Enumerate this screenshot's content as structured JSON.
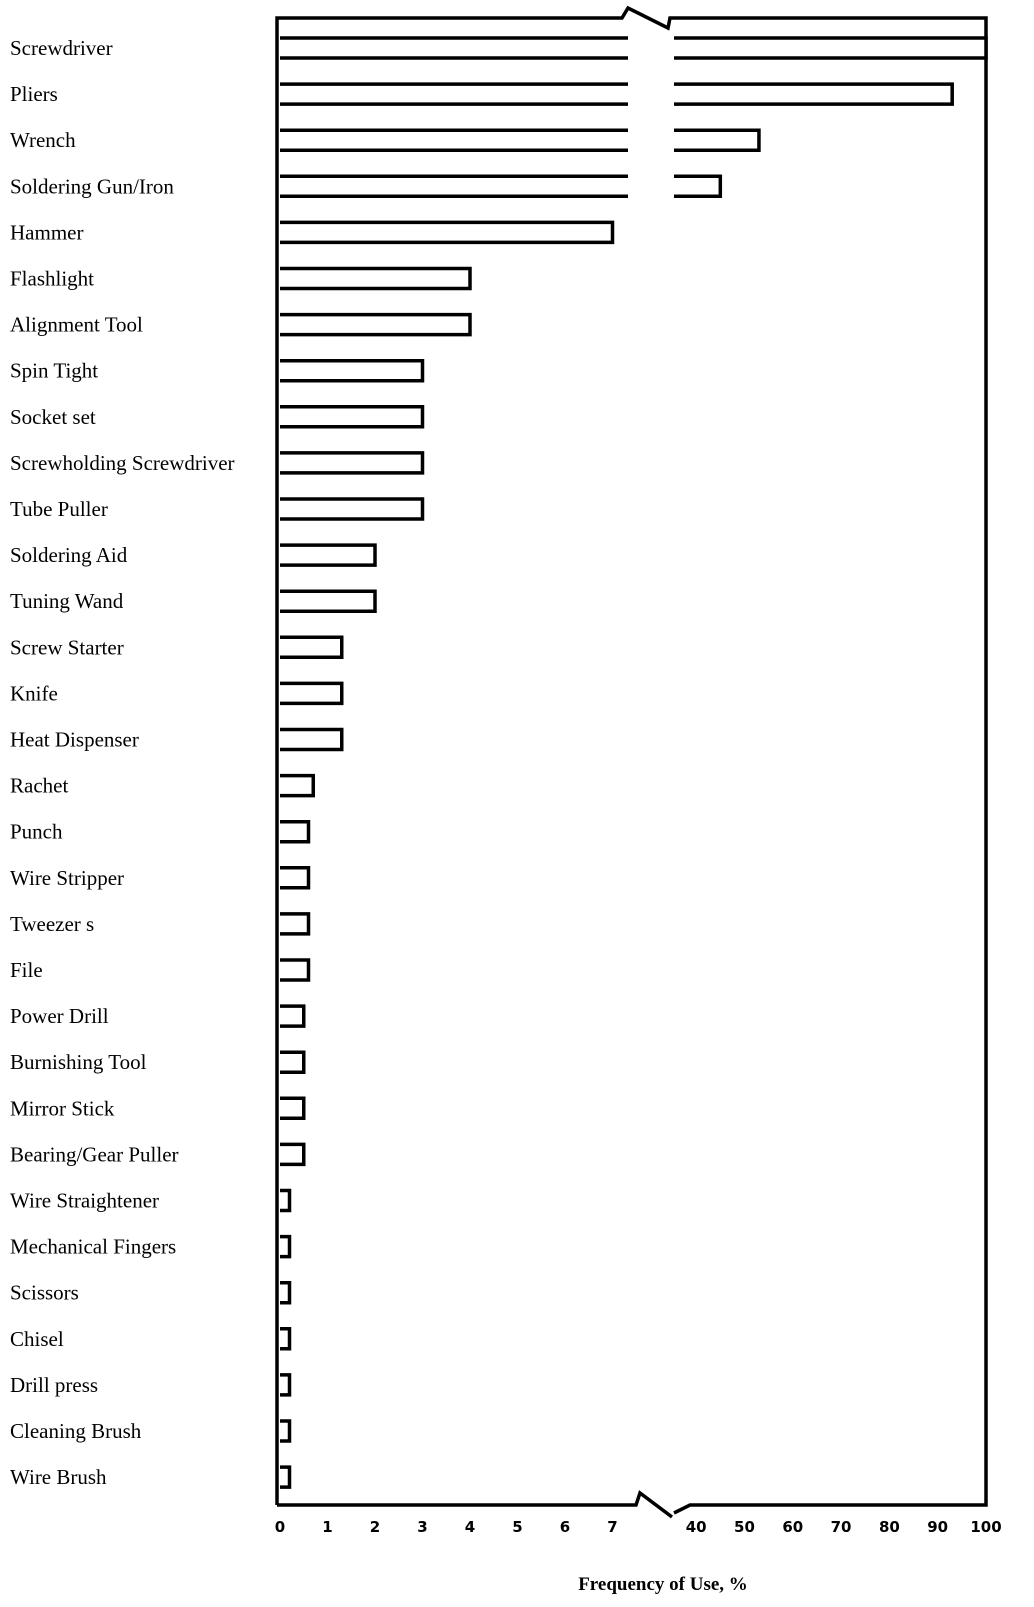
{
  "chart_data": {
    "type": "bar",
    "orientation": "horizontal",
    "title": "",
    "xlabel": "Frequency of Use, %",
    "ylabel": "",
    "axis_break": {
      "low_segment": [
        0,
        7.5
      ],
      "high_segment": [
        35,
        100
      ]
    },
    "x_ticks_low": [
      "0",
      "1",
      "2",
      "3",
      "4",
      "5",
      "6",
      "7"
    ],
    "x_ticks_high": [
      "40",
      "50",
      "60",
      "70",
      "80",
      "90",
      "100"
    ],
    "grid": false,
    "categories": [
      "Screwdriver",
      "Pliers",
      "Wrench",
      "Soldering Gun/Iron",
      "Hammer",
      "Flashlight",
      "Alignment  Tool",
      "Spin  Tight",
      "Socket  set",
      "Screwholding  Screwdriver",
      "Tube  Puller",
      "Soldering Aid",
      "Tuning  Wand",
      "Screw Starter",
      "Knife",
      "Heat  Dispenser",
      "Rachet",
      "Punch",
      "Wire Stripper",
      "Tweezer s",
      "File",
      "Power Drill",
      "Burnishing  Tool",
      "Mirror Stick",
      "Bearing/Gear  Puller",
      "Wire  Straightener",
      "Mechanical  Fingers",
      "Scissors",
      "Chisel",
      "Drill  press",
      "Cleaning  Brush",
      "Wire  Brush"
    ],
    "values": [
      100,
      93,
      53,
      45,
      7,
      4,
      4,
      3,
      3,
      3,
      3,
      2,
      2,
      1.3,
      1.3,
      1.3,
      0.7,
      0.6,
      0.6,
      0.6,
      0.6,
      0.5,
      0.5,
      0.5,
      0.5,
      0.2,
      0.2,
      0.2,
      0.2,
      0.2,
      0.2,
      0.2
    ]
  }
}
